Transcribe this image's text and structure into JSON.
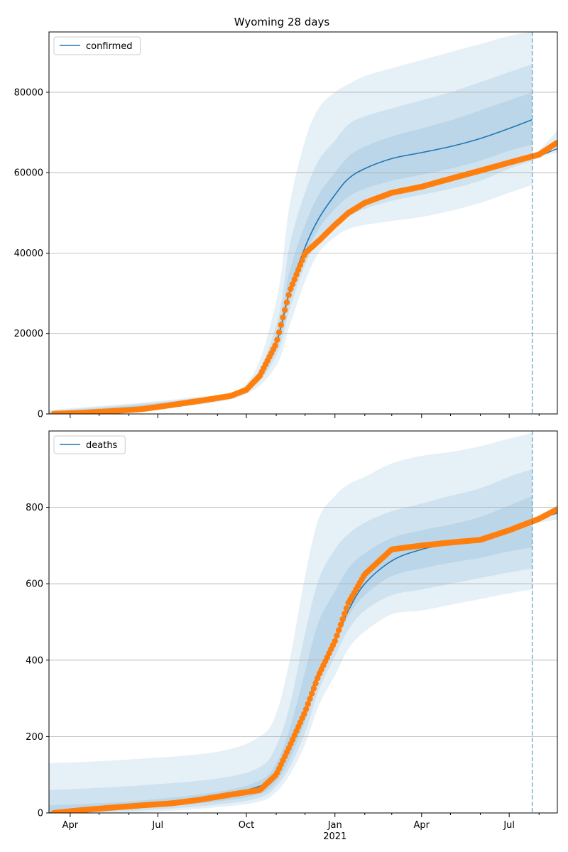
{
  "chart_data": [
    {
      "type": "line",
      "title": "Wyoming 28 days",
      "legend": {
        "placement": "top-left",
        "entries": [
          "confirmed"
        ]
      },
      "xlabel": "",
      "ylabel": "",
      "x_range": [
        "2020-03-10",
        "2021-08-20"
      ],
      "ylim": [
        0,
        95000
      ],
      "yticks": [
        0,
        20000,
        40000,
        60000,
        80000
      ],
      "grid": {
        "y": true,
        "x": false
      },
      "forecast_date": "2021-07-25",
      "series": [
        {
          "name": "confirmed",
          "kind": "median-line",
          "x": [
            "2020-10-01",
            "2020-10-15",
            "2020-11-01",
            "2020-11-15",
            "2020-12-01",
            "2020-12-15",
            "2021-01-01",
            "2021-01-15",
            "2021-02-01",
            "2021-03-01",
            "2021-04-01",
            "2021-05-01",
            "2021-06-01",
            "2021-07-01",
            "2021-07-25"
          ],
          "y": [
            6000,
            9500,
            17500,
            30500,
            41500,
            48500,
            54500,
            58500,
            61000,
            63500,
            65000,
            66500,
            68500,
            71000,
            73200
          ]
        },
        {
          "name": "",
          "kind": "observed-points",
          "x": [
            "2020-03-15",
            "2020-04-15",
            "2020-05-15",
            "2020-06-15",
            "2020-07-15",
            "2020-08-15",
            "2020-09-15",
            "2020-10-01",
            "2020-10-15",
            "2020-11-01",
            "2020-11-15",
            "2020-12-01",
            "2020-12-15",
            "2021-01-01",
            "2021-01-15",
            "2021-02-01",
            "2021-03-01",
            "2021-04-01",
            "2021-05-01",
            "2021-06-01",
            "2021-07-01",
            "2021-08-01",
            "2021-08-20"
          ],
          "y": [
            20,
            300,
            700,
            1200,
            2200,
            3300,
            4500,
            6000,
            9500,
            17500,
            30500,
            40000,
            43000,
            47000,
            50000,
            52500,
            55000,
            56500,
            58500,
            60500,
            62500,
            64500,
            67500
          ]
        }
      ],
      "bands": [
        {
          "level": "outer",
          "x": [
            "2020-03-10",
            "2020-08-01",
            "2020-10-01",
            "2020-11-01",
            "2020-11-15",
            "2020-12-01",
            "2020-12-15",
            "2021-01-01",
            "2021-01-15",
            "2021-02-01",
            "2021-03-01",
            "2021-04-01",
            "2021-05-01",
            "2021-06-01",
            "2021-07-01",
            "2021-07-25"
          ],
          "lower": [
            0,
            2000,
            5000,
            12000,
            22000,
            33000,
            40000,
            44000,
            46000,
            47000,
            48000,
            49000,
            50500,
            52500,
            55000,
            57000
          ],
          "upper": [
            1000,
            4000,
            7500,
            28000,
            52000,
            68000,
            76000,
            80000,
            82000,
            84000,
            86000,
            88000,
            90000,
            92000,
            94000,
            95000
          ]
        },
        {
          "level": "middle",
          "x": [
            "2020-03-10",
            "2020-08-01",
            "2020-10-01",
            "2020-11-01",
            "2020-11-15",
            "2020-12-01",
            "2020-12-15",
            "2021-01-01",
            "2021-01-15",
            "2021-02-01",
            "2021-03-01",
            "2021-04-01",
            "2021-05-01",
            "2021-06-01",
            "2021-07-01",
            "2021-07-25"
          ],
          "lower": [
            0,
            2300,
            5500,
            14500,
            26000,
            37000,
            43000,
            47000,
            49000,
            51000,
            53000,
            54500,
            56000,
            58000,
            61000,
            63000
          ],
          "upper": [
            700,
            3700,
            7000,
            22000,
            42000,
            55000,
            63000,
            68000,
            72000,
            74000,
            76000,
            78000,
            80000,
            82500,
            85000,
            87000
          ]
        },
        {
          "level": "inner",
          "x": [
            "2020-03-10",
            "2020-08-01",
            "2020-10-01",
            "2020-11-01",
            "2020-11-15",
            "2020-12-01",
            "2020-12-15",
            "2021-01-01",
            "2021-01-15",
            "2021-02-01",
            "2021-03-01",
            "2021-04-01",
            "2021-05-01",
            "2021-06-01",
            "2021-07-01",
            "2021-07-25"
          ],
          "lower": [
            0,
            2600,
            5800,
            16000,
            28500,
            39500,
            46000,
            51000,
            54000,
            56000,
            58000,
            59500,
            61000,
            63000,
            65500,
            67000
          ],
          "upper": [
            400,
            3400,
            6600,
            19500,
            35500,
            47000,
            54500,
            60000,
            64000,
            66500,
            69000,
            71000,
            73000,
            75500,
            78000,
            80000
          ]
        },
        {
          "level": "post-forecast",
          "x": [
            "2021-07-25",
            "2021-08-05",
            "2021-08-20"
          ],
          "lower": [
            63000,
            64000,
            65000
          ],
          "upper": [
            64000,
            66500,
            70500
          ]
        }
      ],
      "post_forecast_line": {
        "x": [
          "2021-07-25",
          "2021-08-05",
          "2021-08-20"
        ],
        "y": [
          63500,
          64500,
          66000
        ]
      }
    },
    {
      "type": "line",
      "title": "",
      "legend": {
        "placement": "top-left",
        "entries": [
          "deaths"
        ]
      },
      "xlabel": "",
      "ylabel": "",
      "x_range": [
        "2020-03-10",
        "2021-08-20"
      ],
      "ylim": [
        0,
        1000
      ],
      "yticks": [
        0,
        200,
        400,
        600,
        800
      ],
      "xticks": [
        "Apr",
        "Jul",
        "Oct",
        "Jan",
        "Apr",
        "Jul"
      ],
      "xtick_dates": [
        "2020-04-01",
        "2020-07-01",
        "2020-10-01",
        "2021-01-01",
        "2021-04-01",
        "2021-07-01"
      ],
      "year_label": "2021",
      "grid": {
        "y": true,
        "x": false
      },
      "forecast_date": "2021-07-25",
      "series": [
        {
          "name": "deaths",
          "kind": "median-line",
          "x": [
            "2020-03-10",
            "2020-05-01",
            "2020-07-01",
            "2020-09-01",
            "2020-10-15",
            "2020-11-01",
            "2020-11-15",
            "2020-12-01",
            "2020-12-15",
            "2021-01-01",
            "2021-01-15",
            "2021-02-01",
            "2021-03-01",
            "2021-04-01",
            "2021-05-01",
            "2021-06-01",
            "2021-07-01",
            "2021-07-25"
          ],
          "y": [
            0,
            10,
            25,
            45,
            70,
            100,
            170,
            270,
            370,
            450,
            530,
            600,
            660,
            690,
            705,
            715,
            740,
            760
          ]
        },
        {
          "name": "",
          "kind": "observed-points",
          "x": [
            "2020-03-15",
            "2020-04-15",
            "2020-05-15",
            "2020-06-15",
            "2020-07-15",
            "2020-08-15",
            "2020-09-15",
            "2020-10-15",
            "2020-11-01",
            "2020-11-15",
            "2020-12-01",
            "2020-12-15",
            "2021-01-01",
            "2021-01-15",
            "2021-02-01",
            "2021-03-01",
            "2021-04-01",
            "2021-05-01",
            "2021-06-01",
            "2021-07-01",
            "2021-08-01",
            "2021-08-20"
          ],
          "y": [
            0,
            8,
            14,
            20,
            25,
            35,
            48,
            60,
            100,
            175,
            265,
            360,
            450,
            550,
            625,
            690,
            700,
            708,
            715,
            740,
            770,
            795
          ]
        }
      ],
      "bands": [
        {
          "level": "outer",
          "x": [
            "2020-03-10",
            "2020-06-01",
            "2020-09-01",
            "2020-10-15",
            "2020-11-01",
            "2020-11-15",
            "2020-12-01",
            "2020-12-15",
            "2021-01-01",
            "2021-01-15",
            "2021-02-01",
            "2021-03-01",
            "2021-04-01",
            "2021-05-01",
            "2021-06-01",
            "2021-07-01",
            "2021-07-25"
          ],
          "lower": [
            0,
            0,
            15,
            30,
            55,
            100,
            180,
            280,
            360,
            430,
            475,
            520,
            530,
            545,
            560,
            575,
            585
          ],
          "upper": [
            130,
            140,
            160,
            200,
            260,
            400,
            620,
            770,
            830,
            860,
            880,
            915,
            935,
            945,
            960,
            980,
            995
          ]
        },
        {
          "level": "middle",
          "x": [
            "2020-03-10",
            "2020-06-01",
            "2020-09-01",
            "2020-10-15",
            "2020-11-01",
            "2020-11-15",
            "2020-12-01",
            "2020-12-15",
            "2021-01-01",
            "2021-01-15",
            "2021-02-01",
            "2021-03-01",
            "2021-04-01",
            "2021-05-01",
            "2021-06-01",
            "2021-07-01",
            "2021-07-25"
          ],
          "lower": [
            0,
            5,
            22,
            40,
            70,
            120,
            210,
            320,
            410,
            480,
            530,
            570,
            585,
            600,
            615,
            630,
            640
          ],
          "upper": [
            60,
            70,
            90,
            120,
            175,
            280,
            470,
            610,
            690,
            730,
            760,
            790,
            810,
            830,
            850,
            880,
            900
          ]
        },
        {
          "level": "inner",
          "x": [
            "2020-03-10",
            "2020-06-01",
            "2020-09-01",
            "2020-10-15",
            "2020-11-01",
            "2020-11-15",
            "2020-12-01",
            "2020-12-15",
            "2021-01-01",
            "2021-01-15",
            "2021-02-01",
            "2021-03-01",
            "2021-04-01",
            "2021-05-01",
            "2021-06-01",
            "2021-07-01",
            "2021-07-25"
          ],
          "lower": [
            0,
            10,
            30,
            50,
            82,
            140,
            240,
            350,
            440,
            515,
            570,
            620,
            640,
            655,
            668,
            685,
            695
          ],
          "upper": [
            20,
            30,
            55,
            85,
            130,
            220,
            370,
            500,
            580,
            640,
            680,
            720,
            740,
            755,
            775,
            805,
            830
          ]
        },
        {
          "level": "post-forecast",
          "x": [
            "2021-07-25",
            "2021-08-05",
            "2021-08-20"
          ],
          "lower": [
            755,
            762,
            768
          ],
          "upper": [
            768,
            785,
            805
          ]
        }
      ],
      "post_forecast_line": {
        "x": [
          "2021-07-25",
          "2021-08-05",
          "2021-08-20"
        ],
        "y": [
          760,
          772,
          785
        ]
      }
    }
  ],
  "colors": {
    "line": "#1f77b4",
    "points": "#ff7f0e",
    "band": "#1f77b4",
    "grid": "#b0b0b0",
    "forecast_line": "#1f77b4"
  }
}
